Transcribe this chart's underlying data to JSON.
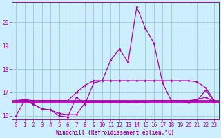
{
  "xlabel": "Windchill (Refroidissement éolien,°C)",
  "x_values": [
    0,
    1,
    2,
    3,
    4,
    5,
    6,
    7,
    8,
    9,
    10,
    11,
    12,
    13,
    14,
    15,
    16,
    17,
    18,
    19,
    20,
    21,
    22,
    23
  ],
  "line_main": [
    16.0,
    16.65,
    16.5,
    16.3,
    16.25,
    16.0,
    15.95,
    16.8,
    16.5,
    17.4,
    17.5,
    18.4,
    18.85,
    18.3,
    20.65,
    19.75,
    19.1,
    17.4,
    16.65,
    16.65,
    16.55,
    16.65,
    17.1,
    16.6
  ],
  "line_curve": [
    16.65,
    16.65,
    16.5,
    16.3,
    16.25,
    16.1,
    16.05,
    16.05,
    16.55,
    16.6,
    16.6,
    16.6,
    16.6,
    16.6,
    16.6,
    16.6,
    16.65,
    16.65,
    16.65,
    16.65,
    16.65,
    16.7,
    16.8,
    16.6
  ],
  "line_upper": [
    16.65,
    16.7,
    16.65,
    16.65,
    16.65,
    16.65,
    16.65,
    17.0,
    17.3,
    17.5,
    17.5,
    17.5,
    17.5,
    17.5,
    17.5,
    17.5,
    17.5,
    17.5,
    17.5,
    17.5,
    17.5,
    17.45,
    17.2,
    16.65
  ],
  "line_flat1": 16.55,
  "line_flat2": 16.65,
  "bg_color": "#cceeff",
  "line_color": "#aa00aa",
  "grid_color": "#99cccc",
  "ylim_min": 15.85,
  "ylim_max": 20.85,
  "yticks": [
    16,
    17,
    18,
    19,
    20
  ],
  "xticks": [
    0,
    1,
    2,
    3,
    4,
    5,
    6,
    7,
    8,
    9,
    10,
    11,
    12,
    13,
    14,
    15,
    16,
    17,
    18,
    19,
    20,
    21,
    22,
    23
  ],
  "xlabel_fontsize": 5.5,
  "tick_fontsize": 5.5,
  "marker": "D",
  "markersize": 2.0,
  "linewidth": 0.9
}
